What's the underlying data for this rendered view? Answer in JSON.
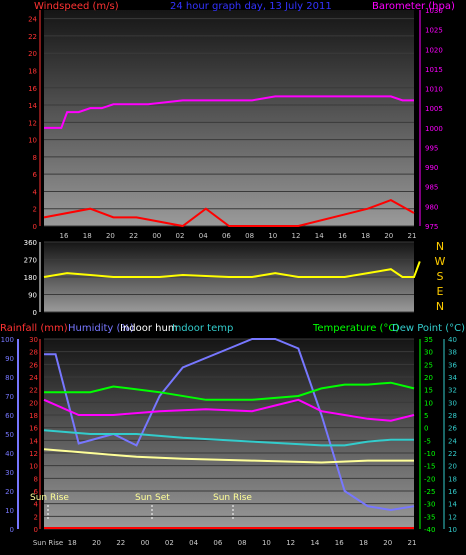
{
  "chart_data": [
    {
      "type": "line",
      "title": "24 hour graph day, 13 July 2011",
      "left_axis_label": "Windspeed (m/s)",
      "right_axis_label": "Barometer (hpa)",
      "x_tick_labels": [
        "16",
        "18",
        "20",
        "22",
        "00",
        "02",
        "04",
        "06",
        "08",
        "10",
        "12",
        "14",
        "16",
        "18",
        "20",
        "22",
        "00",
        "02",
        "04",
        "06",
        "08",
        "10",
        "12",
        "14",
        "16",
        "18",
        "20",
        "21"
      ],
      "x_tick_labels_shown": [
        "16",
        "18",
        "20",
        "22",
        "00",
        "02",
        "04",
        "06",
        "08",
        "10",
        "12",
        "14",
        "16",
        "18",
        "20",
        "21"
      ],
      "y_left": {
        "min": 0,
        "max": 25,
        "ticks": [
          0,
          2,
          4,
          6,
          8,
          10,
          12,
          14,
          16,
          18,
          20,
          22,
          24
        ]
      },
      "y_right": {
        "min": 975,
        "max": 1030,
        "ticks": [
          975,
          980,
          985,
          990,
          995,
          1000,
          1005,
          1010,
          1015,
          1020,
          1025,
          1030
        ]
      },
      "series": [
        {
          "name": "Barometer",
          "axis": "right",
          "color": "#ff00ff",
          "points": [
            [
              0,
              1000
            ],
            [
              1.5,
              1000
            ],
            [
              2,
              1004
            ],
            [
              3,
              1004
            ],
            [
              4,
              1005
            ],
            [
              5,
              1005
            ],
            [
              6,
              1006
            ],
            [
              8,
              1006
            ],
            [
              9,
              1006
            ],
            [
              12,
              1007
            ],
            [
              18,
              1007
            ],
            [
              20,
              1008
            ],
            [
              30,
              1008
            ],
            [
              31,
              1007
            ],
            [
              32,
              1007
            ]
          ]
        },
        {
          "name": "Windspeed",
          "axis": "left",
          "color": "#ff0000",
          "points": [
            [
              0,
              1
            ],
            [
              4,
              2
            ],
            [
              6,
              1
            ],
            [
              8,
              1
            ],
            [
              12,
              0
            ],
            [
              14,
              2
            ],
            [
              16,
              0
            ],
            [
              22,
              0
            ],
            [
              28,
              2
            ],
            [
              30,
              3
            ],
            [
              32,
              1.5
            ]
          ]
        }
      ]
    },
    {
      "type": "line",
      "title": "",
      "y_left": {
        "min": 0,
        "max": 360,
        "ticks": [
          0,
          90,
          180,
          270,
          360
        ]
      },
      "right_labels": [
        "N",
        "W",
        "S",
        "E",
        "N"
      ],
      "series": [
        {
          "name": "Wind direction",
          "color": "#ffff00",
          "points": [
            [
              0,
              180
            ],
            [
              2,
              200
            ],
            [
              4,
              190
            ],
            [
              6,
              180
            ],
            [
              10,
              180
            ],
            [
              12,
              190
            ],
            [
              16,
              180
            ],
            [
              18,
              180
            ],
            [
              20,
              200
            ],
            [
              22,
              180
            ],
            [
              26,
              180
            ],
            [
              28,
              200
            ],
            [
              30,
              220
            ],
            [
              31,
              180
            ],
            [
              32,
              180
            ],
            [
              32.5,
              260
            ]
          ]
        }
      ]
    },
    {
      "type": "line",
      "title": "",
      "header_labels": [
        "Rainfall (mm)",
        "Humidity (%)",
        "Indoor hum",
        "Indoor temp",
        "Temperature (°C)",
        "Dew Point (°C)"
      ],
      "y_left_outer": {
        "min": 0,
        "max": 100,
        "ticks": [
          0,
          10,
          20,
          30,
          40,
          50,
          60,
          70,
          80,
          90,
          100
        ]
      },
      "y_left_inner": {
        "min": 0,
        "max": 30,
        "ticks": [
          0,
          2,
          4,
          6,
          8,
          10,
          12,
          14,
          16,
          18,
          20,
          22,
          24,
          26,
          28,
          30
        ]
      },
      "y_right_inner": {
        "min": -40,
        "max": 35,
        "ticks": [
          -40,
          -35,
          -30,
          -25,
          -20,
          -15,
          -10,
          -5,
          0,
          5,
          10,
          15,
          20,
          25,
          30,
          35
        ]
      },
      "y_right_outer": {
        "min": 10,
        "max": 40,
        "ticks": [
          10,
          12,
          14,
          16,
          18,
          20,
          22,
          24,
          26,
          28,
          30,
          32,
          34,
          36,
          38,
          40
        ]
      },
      "annotations": [
        "Sun Rise",
        "Sun Set",
        "Sun Rise"
      ],
      "x_tick_labels_shown": [
        "Sun Rise",
        "18",
        "20",
        "22",
        "00",
        "02",
        "04",
        "06",
        "08",
        "10",
        "12",
        "14",
        "16",
        "18",
        "20",
        "21"
      ],
      "series": [
        {
          "name": "Humidity",
          "color": "#7777ff",
          "points": [
            [
              0,
              92
            ],
            [
              1,
              92
            ],
            [
              3,
              45
            ],
            [
              6,
              50
            ],
            [
              8,
              44
            ],
            [
              10,
              70
            ],
            [
              12,
              85
            ],
            [
              16,
              95
            ],
            [
              18,
              100
            ],
            [
              20,
              100
            ],
            [
              22,
              95
            ],
            [
              24,
              60
            ],
            [
              26,
              20
            ],
            [
              28,
              12
            ],
            [
              30,
              10
            ],
            [
              32,
              12
            ]
          ]
        },
        {
          "name": "Temperature",
          "color": "#00ff00",
          "points": [
            [
              0,
              72
            ],
            [
              4,
              72
            ],
            [
              6,
              75
            ],
            [
              10,
              72
            ],
            [
              14,
              68
            ],
            [
              18,
              68
            ],
            [
              22,
              70
            ],
            [
              24,
              74
            ],
            [
              26,
              76
            ],
            [
              28,
              76
            ],
            [
              30,
              77
            ],
            [
              32,
              74
            ]
          ]
        },
        {
          "name": "Indoor temp",
          "color": "#ff00ff",
          "points": [
            [
              0,
              68
            ],
            [
              3,
              60
            ],
            [
              6,
              60
            ],
            [
              10,
              62
            ],
            [
              14,
              63
            ],
            [
              18,
              62
            ],
            [
              20,
              65
            ],
            [
              22,
              68
            ],
            [
              24,
              62
            ],
            [
              26,
              60
            ],
            [
              28,
              58
            ],
            [
              30,
              57
            ],
            [
              32,
              60
            ]
          ]
        },
        {
          "name": "Dew Point",
          "color": "#33cccc",
          "points": [
            [
              0,
              52
            ],
            [
              4,
              50
            ],
            [
              8,
              50
            ],
            [
              12,
              48
            ],
            [
              18,
              46
            ],
            [
              24,
              44
            ],
            [
              26,
              44
            ],
            [
              28,
              46
            ],
            [
              30,
              47
            ],
            [
              32,
              47
            ]
          ]
        },
        {
          "name": "Indoor hum",
          "color": "#ffff99",
          "points": [
            [
              0,
              42
            ],
            [
              4,
              40
            ],
            [
              8,
              38
            ],
            [
              12,
              37
            ],
            [
              18,
              36
            ],
            [
              24,
              35
            ],
            [
              28,
              36
            ],
            [
              32,
              36
            ]
          ]
        },
        {
          "name": "Rainfall",
          "color": "#ff0000",
          "points": [
            [
              0,
              0.5
            ],
            [
              32,
              0.5
            ]
          ]
        }
      ]
    }
  ]
}
